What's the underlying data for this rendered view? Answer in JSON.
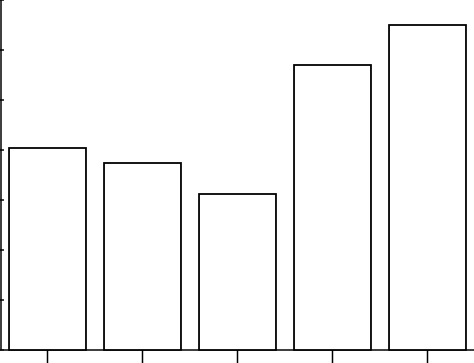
{
  "chart_data": {
    "type": "bar",
    "categories": [
      null,
      null,
      null,
      null,
      null
    ],
    "values": [
      202,
      187,
      156,
      285,
      325
    ],
    "color": "#ffffff",
    "ylim": [
      0,
      350
    ],
    "yticks": [
      0,
      50,
      100,
      150,
      200,
      250,
      300,
      350
    ]
  }
}
